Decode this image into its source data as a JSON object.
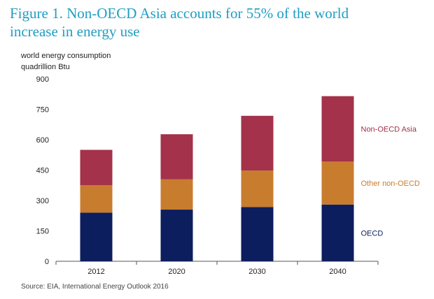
{
  "title": {
    "line1": "Figure 1. Non-OECD Asia accounts for 55% of the world",
    "line2": "increase in energy use"
  },
  "ylabel": {
    "line1": "world energy consumption",
    "line2": "quadrillion Btu"
  },
  "source": "Source:  EIA, International Energy Outlook 2016",
  "chart_data": {
    "type": "bar",
    "stacked": true,
    "categories": [
      "2012",
      "2020",
      "2030",
      "2040"
    ],
    "series": [
      {
        "name": "OECD",
        "values": [
          240,
          255,
          268,
          280
        ],
        "color": "#0c1e5e"
      },
      {
        "name": "Other non-OECD",
        "values": [
          135,
          150,
          180,
          212
        ],
        "color": "#c87c2e"
      },
      {
        "name": "Non-OECD Asia",
        "values": [
          175,
          222,
          270,
          323
        ],
        "color": "#a3324a"
      }
    ],
    "ylim": [
      0,
      900
    ],
    "yticks": [
      0,
      150,
      300,
      450,
      600,
      750,
      900
    ],
    "grid": false,
    "legend": "right, beside each segment",
    "label_colors": {
      "OECD": "#0c1e5e",
      "Other non-OECD": "#c87c2e",
      "Non-OECD Asia": "#a3324a"
    }
  }
}
